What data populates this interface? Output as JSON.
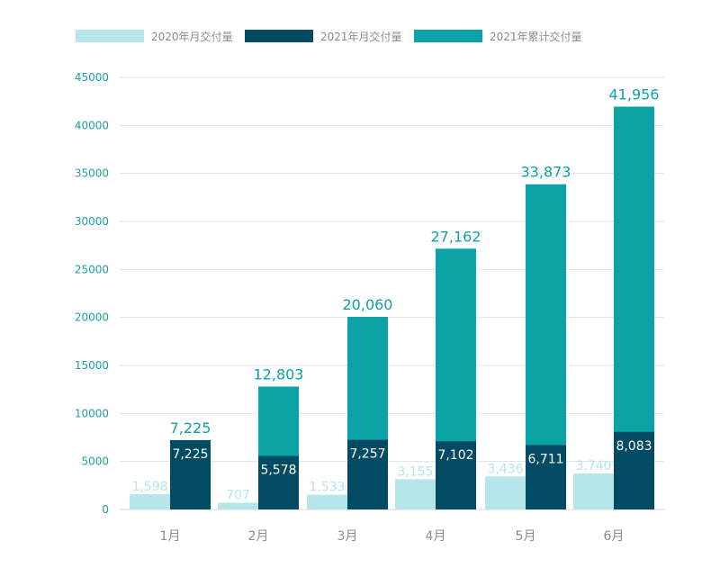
{
  "chart_data": {
    "type": "bar",
    "categories": [
      "1月",
      "2月",
      "3月",
      "4月",
      "5月",
      "6月"
    ],
    "series": [
      {
        "name": "2020年月交付量",
        "values": [
          1598,
          707,
          1533,
          3155,
          3436,
          3740
        ],
        "labels": [
          "1,598",
          "707",
          "1,533",
          "3,155",
          "3,436",
          "3,740"
        ],
        "color": "#b7e6ea"
      },
      {
        "name": "2021年月交付量",
        "values": [
          7225,
          5578,
          7257,
          7102,
          6711,
          8083
        ],
        "labels": [
          "7,225",
          "5,578",
          "7,257",
          "7,102",
          "6,711",
          "8,083"
        ],
        "color": "#034a63"
      },
      {
        "name": "2021年累计交付量",
        "values": [
          7225,
          12803,
          20060,
          27162,
          33873,
          41956
        ],
        "labels": [
          "7,225",
          "12,803",
          "20,060",
          "27,162",
          "33,873",
          "41,956"
        ],
        "color": "#0ba3a6"
      }
    ],
    "y_ticks": [
      "0",
      "5000",
      "10000",
      "15000",
      "20000",
      "25000",
      "30000",
      "35000",
      "40000",
      "45000"
    ],
    "ylim": [
      0,
      45000
    ],
    "grid": true,
    "legend": "top"
  }
}
